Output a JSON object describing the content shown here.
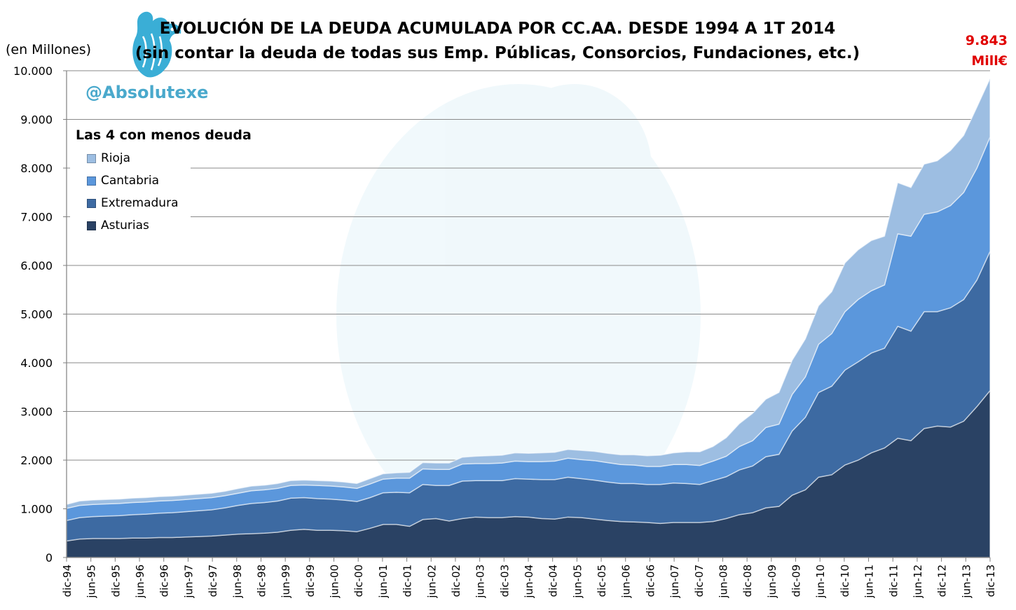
{
  "title_line1": "EVOLUCIÓN DE LA DEUDA ACUMULADA POR CC.AA. DESDE 1994 A 1T 2014",
  "title_line2": "(sin contar la deuda de todas sus Emp. Públicas, Consorcios, Fundaciones, etc.)",
  "unit_label": "(en Millones)",
  "handle": "@Absolutexe",
  "callout": {
    "value": "9.843",
    "unit": "Mill€",
    "color": "#e00000"
  },
  "legend_title": "Las 4 con menos deuda",
  "colors": {
    "Asturias": "#2a4264",
    "Extremadura": "#3d6aa2",
    "Cantabria": "#5b97dc",
    "Rioja": "#9dbee2",
    "handle": "#4aa9cc"
  },
  "chart_data": {
    "type": "area",
    "stacked": true,
    "title": "EVOLUCIÓN DE LA DEUDA ACUMULADA POR CC.AA. DESDE 1994 A 1T 2014",
    "ylabel": "(en Millones)",
    "ylim": [
      0,
      10000
    ],
    "yticks": [
      "0",
      "1.000",
      "2.000",
      "3.000",
      "4.000",
      "5.000",
      "6.000",
      "7.000",
      "8.000",
      "9.000",
      "10.000"
    ],
    "ytick_values": [
      0,
      1000,
      2000,
      3000,
      4000,
      5000,
      6000,
      7000,
      8000,
      9000,
      10000
    ],
    "xtick_labels": [
      "dic-94",
      "jun-95",
      "dic-95",
      "jun-96",
      "dic-96",
      "jun-97",
      "dic-97",
      "jun-98",
      "dic-98",
      "jun-99",
      "dic-99",
      "jun-00",
      "dic-00",
      "jun-01",
      "dic-01",
      "jun-02",
      "dic-02",
      "jun-03",
      "dic-03",
      "jun-04",
      "dic-04",
      "jun-05",
      "dic-05",
      "jun-06",
      "dic-06",
      "jun-07",
      "dic-07",
      "jun-08",
      "dic-08",
      "jun-09",
      "dic-09",
      "jun-10",
      "dic-10",
      "jun-11",
      "dic-11",
      "jun-12",
      "dic-12",
      "jun-13",
      "dic-13"
    ],
    "legend_position": "top-left",
    "grid": true,
    "series": [
      {
        "name": "Asturias",
        "values": [
          340,
          380,
          390,
          390,
          390,
          400,
          400,
          410,
          410,
          420,
          430,
          440,
          460,
          480,
          490,
          500,
          520,
          560,
          580,
          560,
          560,
          550,
          530,
          600,
          680,
          680,
          640,
          780,
          800,
          750,
          800,
          830,
          820,
          820,
          840,
          830,
          800,
          790,
          830,
          820,
          790,
          760,
          740,
          730,
          720,
          700,
          720,
          720,
          720,
          740,
          800,
          880,
          920,
          1020,
          1050,
          1280,
          1390,
          1650,
          1700,
          1900,
          2000,
          2150,
          2250,
          2450,
          2400,
          2650,
          2700,
          2680,
          2800,
          3100,
          3430
        ]
      },
      {
        "name": "Extremadura",
        "values": [
          420,
          440,
          450,
          460,
          470,
          480,
          490,
          500,
          510,
          520,
          530,
          540,
          560,
          590,
          620,
          630,
          640,
          660,
          650,
          650,
          640,
          630,
          620,
          630,
          650,
          660,
          690,
          720,
          680,
          730,
          770,
          750,
          760,
          760,
          780,
          780,
          800,
          810,
          820,
          800,
          800,
          790,
          780,
          790,
          780,
          800,
          810,
          800,
          780,
          840,
          860,
          920,
          960,
          1050,
          1070,
          1320,
          1490,
          1740,
          1820,
          1950,
          2020,
          2050,
          2050,
          2300,
          2250,
          2400,
          2350,
          2450,
          2500,
          2600,
          2860
        ]
      },
      {
        "name": "Cantabria",
        "values": [
          250,
          250,
          250,
          250,
          250,
          250,
          250,
          250,
          250,
          250,
          250,
          250,
          250,
          250,
          260,
          260,
          260,
          260,
          260,
          270,
          270,
          270,
          270,
          280,
          280,
          290,
          300,
          320,
          330,
          330,
          350,
          350,
          350,
          360,
          360,
          360,
          370,
          380,
          390,
          390,
          400,
          400,
          390,
          380,
          370,
          370,
          380,
          390,
          390,
          400,
          420,
          480,
          520,
          600,
          620,
          750,
          830,
          990,
          1080,
          1200,
          1280,
          1280,
          1300,
          1900,
          1950,
          2000,
          2050,
          2100,
          2200,
          2300,
          2350
        ]
      },
      {
        "name": "Rioja",
        "values": [
          80,
          90,
          90,
          90,
          90,
          90,
          90,
          90,
          90,
          90,
          90,
          90,
          90,
          95,
          95,
          95,
          100,
          100,
          100,
          100,
          100,
          100,
          100,
          110,
          110,
          110,
          120,
          130,
          130,
          130,
          140,
          150,
          160,
          160,
          170,
          170,
          180,
          180,
          180,
          190,
          190,
          190,
          200,
          210,
          220,
          230,
          240,
          260,
          280,
          300,
          380,
          470,
          560,
          580,
          650,
          700,
          780,
          790,
          860,
          1000,
          1020,
          1030,
          1000,
          1050,
          1000,
          1030,
          1050,
          1130,
          1170,
          1250,
          1200
        ]
      }
    ],
    "annotation": "9.843 Mill€"
  }
}
